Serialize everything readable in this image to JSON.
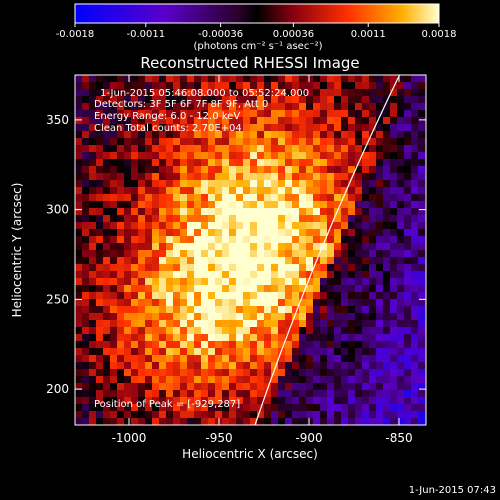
{
  "chart_data": {
    "type": "heatmap",
    "title": "Reconstructed RHESSI Image",
    "xlabel": "Heliocentric X (arcsec)",
    "ylabel": "Heliocentric Y (arcsec)",
    "xlim": [
      -1030,
      -835
    ],
    "ylim": [
      180,
      375
    ],
    "xticks": [
      "-1000",
      "-950",
      "-900",
      "-850"
    ],
    "xtick_values": [
      -1000,
      -950,
      -900,
      -850
    ],
    "yticks": [
      "200",
      "250",
      "300",
      "350"
    ],
    "ytick_values": [
      200,
      250,
      300,
      350
    ],
    "colorbar": {
      "range": [
        -0.0018,
        0.0018
      ],
      "ticks": [
        "-0.0018",
        "-0.0011",
        "-0.00036",
        "0.00036",
        "0.0011",
        "0.0018"
      ],
      "tick_values": [
        -0.0018,
        -0.0011,
        -0.00036,
        0.00036,
        0.0011,
        0.0018
      ],
      "units": "(photons cm⁻² s⁻¹ asec⁻²)"
    },
    "peak": {
      "x": -929,
      "y": 287,
      "value": 0.0018
    },
    "annotations": {
      "time": "1-Jun-2015 05:46:08.000 to 05:52:24.000",
      "detectors": "Detectors: 3F 5F 6F 7F 8F 9F, Att 0",
      "energy": "Energy Range: 6.0 - 12.0 keV",
      "clean": "Clean    Total counts: 2.70E+04",
      "peak_label": "Position of Peak = [-929,287]"
    }
  },
  "footer": "1-Jun-2015 07:43",
  "colors": {
    "background": "#000000",
    "limb_line": "#ffffff",
    "text": "#ffffff"
  }
}
